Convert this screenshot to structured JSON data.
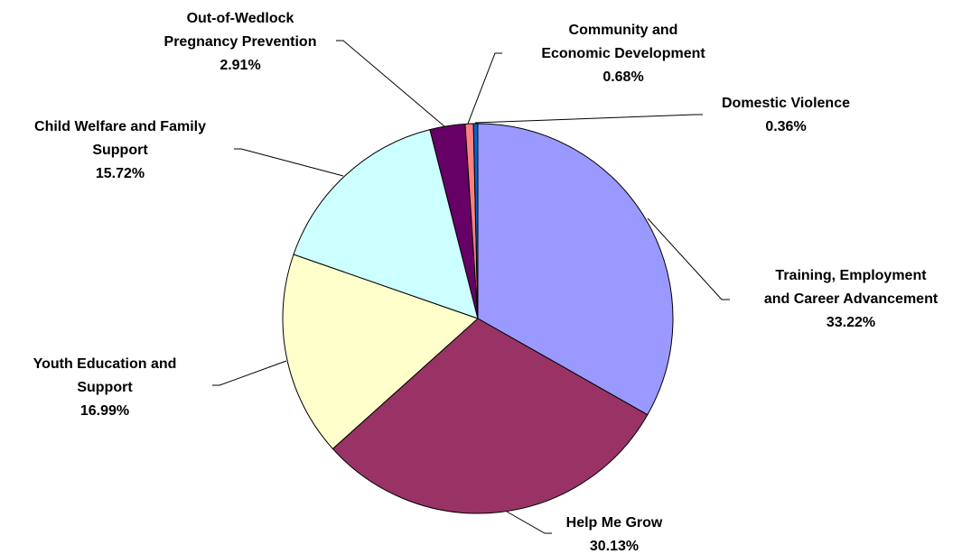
{
  "chart_data": {
    "type": "pie",
    "title": "",
    "start_angle_deg": 0,
    "direction": "clockwise",
    "slices": [
      {
        "label": "Training, Employment and Career Advancement",
        "value": 33.22,
        "display": "33.22%",
        "color": "#9999FF"
      },
      {
        "label": "Help Me Grow",
        "value": 30.13,
        "display": "30.13%",
        "color": "#993366"
      },
      {
        "label": "Youth Education and Support",
        "value": 16.99,
        "display": "16.99%",
        "color": "#FFFFCC"
      },
      {
        "label": "Child Welfare and Family Support",
        "value": 15.72,
        "display": "15.72%",
        "color": "#CCFFFF"
      },
      {
        "label": "Out-of-Wedlock Pregnancy Prevention",
        "value": 2.91,
        "display": "2.91%",
        "color": "#660066"
      },
      {
        "label": "Community and Economic Development",
        "value": 0.68,
        "display": "0.68%",
        "color": "#FF8080"
      },
      {
        "label": "Domestic Violence",
        "value": 0.36,
        "display": "0.36%",
        "color": "#0066CC"
      }
    ]
  }
}
